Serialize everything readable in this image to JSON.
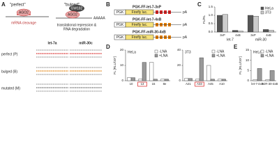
{
  "panels": {
    "A": {
      "label": "A",
      "perfect": "\"perfect\"",
      "bulged": "\"bulged\"",
      "ago2": "AGO2",
      "gw182": "GW182",
      "cleavage": "mRNA cleavage",
      "repression": [
        "translational repression &",
        "RNA degradation"
      ],
      "polya": "AAAAA",
      "columns": [
        "let-7a",
        "miR-30c"
      ],
      "rows": [
        "perfect (P)",
        "bulged (B)",
        "mutated (M)"
      ]
    },
    "B": {
      "label": "B",
      "constructs": [
        "PGK-FF-let-7-3xP",
        "PGK-FF-let-7-4xB",
        "PGK-FF-miR-30-4xB"
      ],
      "pgk": "PGK",
      "luc": "Firefly luc.",
      "pa": "pA"
    },
    "C": {
      "label": "C",
      "chart": {
        "type": "bar",
        "ylabel": "FL/RL",
        "categories": [
          "3xP",
          "4xB",
          "3xP",
          "4xB"
        ],
        "groups": [
          "let-7",
          "miR-30"
        ],
        "series": [
          {
            "name": "HeLa",
            "color": "#555555",
            "values": [
              1.0,
              0.1,
              1.0,
              0.15
            ]
          },
          {
            "name": "3T3",
            "color": "#cccccc",
            "values": [
              1.05,
              0.05,
              0.95,
              0.1
            ]
          }
        ],
        "ylim": [
          0,
          1.5
        ],
        "yticks": [
          {
            "value": 0,
            "label": "0.0"
          },
          {
            "value": 0.5,
            "label": "0.5"
          },
          {
            "value": 1,
            "label": "1.0"
          },
          {
            "value": 1.5,
            "label": "1.5"
          }
        ]
      }
    },
    "D": {
      "label": "D",
      "charts": [
        {
          "type": "bar",
          "title": "HeLa",
          "ylabel": "FL [RLU/10⁷]",
          "categories": [
            "10",
            "13",
            "15",
            "8e"
          ],
          "highlight": 1,
          "highlight_color": "#d62020",
          "series": [
            {
              "name": "-LNA",
              "color": "#ffffff",
              "values": [
                2,
                1,
                12,
                1
              ]
            },
            {
              "name": "+LNA",
              "color": "#999999",
              "values": [
                2,
                12,
                1,
                1
              ]
            }
          ],
          "ylim": [
            0,
            20
          ],
          "yticks": [
            0,
            10,
            20
          ]
        },
        {
          "type": "bar",
          "title": "3T3",
          "categories": [
            "A21",
            "A33",
            "A45",
            "A10"
          ],
          "highlight": 1,
          "highlight_color": "#d62020",
          "series": [
            {
              "name": "-LNA",
              "color": "#ffffff",
              "values": [
                3,
                2,
                20,
                2
              ]
            },
            {
              "name": "+LNA",
              "color": "#999999",
              "values": [
                3,
                30,
                2,
                2
              ]
            }
          ],
          "ylim": [
            0,
            40
          ],
          "yticks": [
            0,
            20,
            40
          ]
        }
      ]
    },
    "E": {
      "label": "E",
      "chart": {
        "type": "bar",
        "title": "HeLa",
        "ylabel": "FL [RLU/10⁷]",
        "categories": [
          "let-7-4xB",
          "miR-30-4xB"
        ],
        "series": [
          {
            "name": "-LNA",
            "color": "#ffffff",
            "values": [
              0.5,
              0.5
            ]
          },
          {
            "name": "+LNA",
            "color": "#999999",
            "values": [
              6,
              5
            ]
          }
        ],
        "ylim": [
          0,
          15
        ],
        "yticks": [
          0,
          5,
          10,
          15
        ]
      }
    }
  }
}
